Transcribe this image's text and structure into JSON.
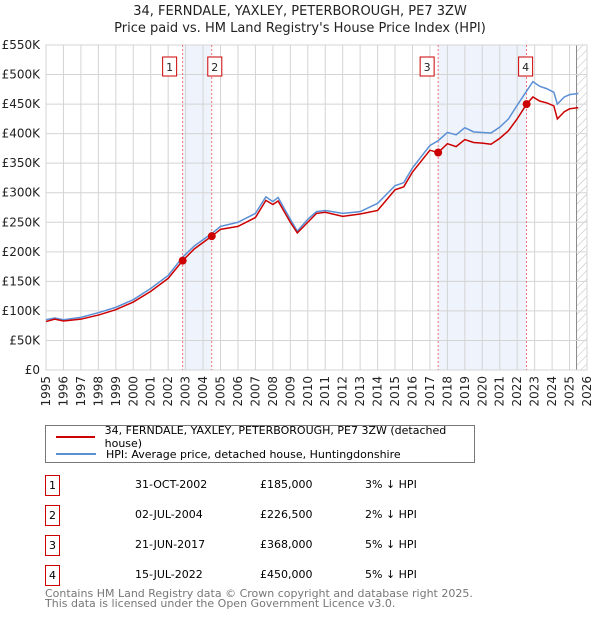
{
  "chart_data": {
    "type": "line",
    "title": "34, FERNDALE, YAXLEY, PETERBOROUGH, PE7 3ZW",
    "subtitle": "Price paid vs. HM Land Registry's House Price Index (HPI)",
    "xlim": [
      1995,
      2026
    ],
    "ylim": [
      0,
      550000
    ],
    "x_ticks": [
      "1995",
      "1996",
      "1997",
      "1998",
      "1999",
      "2000",
      "2001",
      "2002",
      "2003",
      "2004",
      "2005",
      "2006",
      "2007",
      "2008",
      "2009",
      "2010",
      "2011",
      "2012",
      "2013",
      "2014",
      "2015",
      "2016",
      "2017",
      "2018",
      "2019",
      "2020",
      "2021",
      "2022",
      "2023",
      "2024",
      "2025",
      "2026"
    ],
    "y_ticks": [
      {
        "v": 0,
        "l": "£0"
      },
      {
        "v": 50000,
        "l": "£50K"
      },
      {
        "v": 100000,
        "l": "£100K"
      },
      {
        "v": 150000,
        "l": "£150K"
      },
      {
        "v": 200000,
        "l": "£200K"
      },
      {
        "v": 250000,
        "l": "£250K"
      },
      {
        "v": 300000,
        "l": "£300K"
      },
      {
        "v": 350000,
        "l": "£350K"
      },
      {
        "v": 400000,
        "l": "£400K"
      },
      {
        "v": 450000,
        "l": "£450K"
      },
      {
        "v": 500000,
        "l": "£500K"
      },
      {
        "v": 550000,
        "l": "£550K"
      }
    ],
    "grid": true,
    "forecast_from": 2025.4,
    "series": [
      {
        "name": "34, FERNDALE, YAXLEY, PETERBOROUGH, PE7 3ZW (detached house)",
        "color": "#cc0000",
        "x": [
          1995,
          1995.5,
          1996,
          1997,
          1998,
          1999,
          2000,
          2001,
          2002,
          2002.83,
          2003.5,
          2004.5,
          2005,
          2006,
          2007,
          2007.6,
          2008,
          2008.3,
          2009,
          2009.4,
          2010,
          2010.5,
          2011,
          2012,
          2013,
          2014,
          2015,
          2015.5,
          2016,
          2017,
          2017.47,
          2018,
          2018.5,
          2019,
          2019.5,
          2020,
          2020.5,
          2021,
          2021.5,
          2022,
          2022.54,
          2022.9,
          2023.3,
          2023.7,
          2024.1,
          2024.3,
          2024.7,
          2025,
          2025.5
        ],
        "y": [
          82000,
          86000,
          83000,
          86000,
          93000,
          102000,
          115000,
          133000,
          155000,
          185000,
          205000,
          226500,
          238000,
          243000,
          258000,
          287000,
          280000,
          286000,
          250000,
          232000,
          250000,
          265000,
          267000,
          260000,
          264000,
          270000,
          305000,
          310000,
          335000,
          372000,
          368000,
          383000,
          378000,
          390000,
          385000,
          384000,
          382000,
          392000,
          405000,
          425000,
          450000,
          462000,
          455000,
          452000,
          447000,
          425000,
          437000,
          442000,
          444000
        ]
      },
      {
        "name": "HPI: Average price, detached house, Huntingdonshire",
        "color": "#5b8fd6",
        "x": [
          1995,
          1995.5,
          1996,
          1997,
          1998,
          1999,
          2000,
          2001,
          2002,
          2002.83,
          2003.5,
          2004.5,
          2005,
          2006,
          2007,
          2007.6,
          2008,
          2008.3,
          2009,
          2009.4,
          2010,
          2010.5,
          2011,
          2012,
          2013,
          2014,
          2015,
          2015.5,
          2016,
          2017,
          2017.47,
          2018,
          2018.5,
          2019,
          2019.5,
          2020,
          2020.5,
          2021,
          2021.5,
          2022,
          2022.54,
          2022.9,
          2023.3,
          2023.7,
          2024.1,
          2024.3,
          2024.7,
          2025,
          2025.5
        ],
        "y": [
          85000,
          88000,
          85000,
          89000,
          97000,
          106000,
          119000,
          138000,
          160000,
          191000,
          210000,
          231000,
          243000,
          250000,
          265000,
          293000,
          285000,
          292000,
          255000,
          235000,
          255000,
          268000,
          270000,
          265000,
          268000,
          282000,
          312000,
          317000,
          342000,
          380000,
          388000,
          402000,
          398000,
          410000,
          403000,
          402000,
          401000,
          411000,
          425000,
          448000,
          472000,
          488000,
          480000,
          476000,
          470000,
          450000,
          462000,
          466000,
          468000
        ]
      }
    ],
    "sales": [
      {
        "n": "1",
        "x": 2002.83,
        "y": 185000,
        "date": "31-OCT-2002",
        "price": "£185,000",
        "hpi": "3% ↓ HPI"
      },
      {
        "n": "2",
        "x": 2004.5,
        "y": 226500,
        "date": "02-JUL-2004",
        "price": "£226,500",
        "hpi": "2% ↓ HPI"
      },
      {
        "n": "3",
        "x": 2017.47,
        "y": 368000,
        "date": "21-JUN-2017",
        "price": "£368,000",
        "hpi": "5% ↓ HPI"
      },
      {
        "n": "4",
        "x": 2022.54,
        "y": 450000,
        "date": "15-JUL-2022",
        "price": "£450,000",
        "hpi": "5% ↓ HPI"
      }
    ],
    "shaded": [
      [
        2002.83,
        2004.5
      ],
      [
        2017.47,
        2022.54
      ]
    ]
  },
  "footer": {
    "line1": "Contains HM Land Registry data © Crown copyright and database right 2025.",
    "line2": "This data is licensed under the Open Government Licence v3.0."
  }
}
